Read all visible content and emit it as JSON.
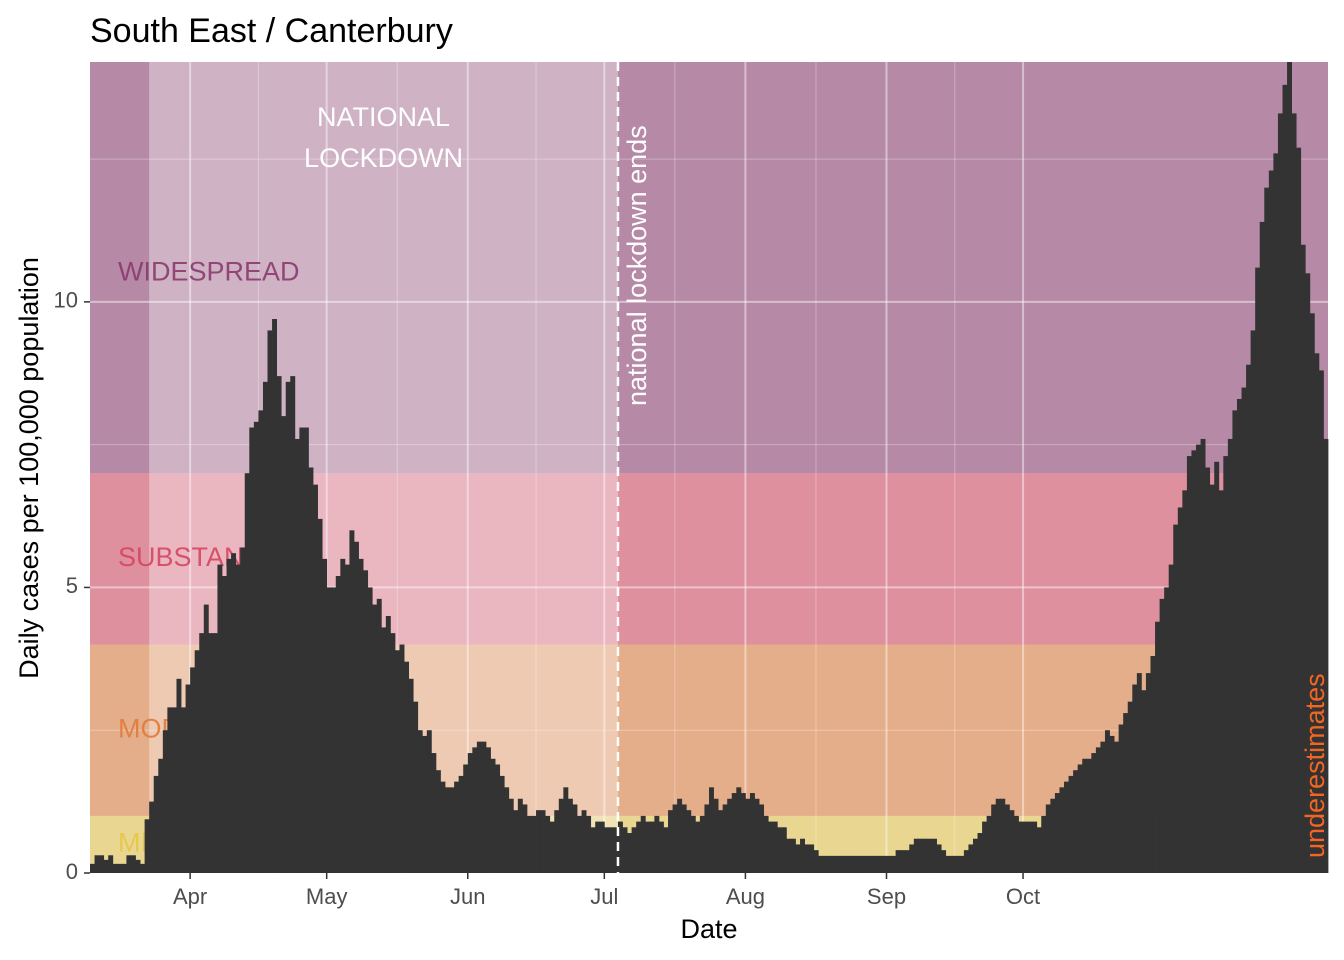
{
  "chart_data": {
    "type": "bar",
    "title": "South East / Canterbury",
    "xlabel": "Date",
    "ylabel": "Daily cases per 100,000 population",
    "x_start": "2020-03-10",
    "ylim": [
      0,
      14.2
    ],
    "yticks": [
      {
        "value": 0,
        "label": "0"
      },
      {
        "value": 5,
        "label": "5"
      },
      {
        "value": 10,
        "label": "10"
      }
    ],
    "xticks": [
      {
        "date": "2020-04-01",
        "label": "Apr"
      },
      {
        "date": "2020-05-01",
        "label": "May"
      },
      {
        "date": "2020-06-01",
        "label": "Jun"
      },
      {
        "date": "2020-07-01",
        "label": "Jul"
      },
      {
        "date": "2020-08-01",
        "label": "Aug"
      },
      {
        "date": "2020-09-01",
        "label": "Sep"
      },
      {
        "date": "2020-10-01",
        "label": "Oct"
      }
    ],
    "grid": true,
    "bar_color": "#333333",
    "bands": [
      {
        "label": "MINIMAL",
        "ymin": 0,
        "ymax": 1,
        "color": "#e8c547"
      },
      {
        "label": "MODERATE",
        "ymin": 1,
        "ymax": 4,
        "color": "#e07b3a"
      },
      {
        "label": "SUBSTANTIAL",
        "ymin": 4,
        "ymax": 7,
        "color": "#d6455f"
      },
      {
        "label": "WIDESPREAD",
        "ymin": 7,
        "ymax": 14.2,
        "color": "#8a3a6e"
      }
    ],
    "lockdown": {
      "start": "2020-03-23",
      "end": "2020-07-04",
      "label_lines": [
        "NATIONAL",
        "LOCKDOWN"
      ],
      "end_label": "national lockdown ends"
    },
    "underestimates_label": "underestimates",
    "underestimates_color": "#f26522",
    "values": [
      0.16,
      0.31,
      0.31,
      0.23,
      0.31,
      0.16,
      0.16,
      0.16,
      0.31,
      0.31,
      0.23,
      0.16,
      0.94,
      1.25,
      1.7,
      2.0,
      2.5,
      2.9,
      2.9,
      3.4,
      2.9,
      3.3,
      3.6,
      3.9,
      4.2,
      4.7,
      4.2,
      4.2,
      5.4,
      5.2,
      5.5,
      5.6,
      5.4,
      5.7,
      7.0,
      7.8,
      7.9,
      8.1,
      8.6,
      9.5,
      9.7,
      8.7,
      8.0,
      8.6,
      8.7,
      7.6,
      7.8,
      7.8,
      7.1,
      6.8,
      6.2,
      5.5,
      5.0,
      5.0,
      5.2,
      5.5,
      5.4,
      6.0,
      5.8,
      5.5,
      5.3,
      5.0,
      4.7,
      4.8,
      4.3,
      4.5,
      4.2,
      3.9,
      4.0,
      3.7,
      3.4,
      3.0,
      2.5,
      2.4,
      2.5,
      2.1,
      1.8,
      1.6,
      1.5,
      1.5,
      1.6,
      1.7,
      1.9,
      2.1,
      2.2,
      2.3,
      2.3,
      2.2,
      2.0,
      1.9,
      1.7,
      1.5,
      1.3,
      1.1,
      1.3,
      1.2,
      1.0,
      1.0,
      1.1,
      1.1,
      1.0,
      0.9,
      1.1,
      1.3,
      1.5,
      1.3,
      1.2,
      1.0,
      1.1,
      1.0,
      0.8,
      0.9,
      0.9,
      0.8,
      0.8,
      0.8,
      0.9,
      0.8,
      0.7,
      0.8,
      0.9,
      1.0,
      0.9,
      0.9,
      1.0,
      0.9,
      0.8,
      1.1,
      1.2,
      1.3,
      1.2,
      1.1,
      1.0,
      0.9,
      1.0,
      1.2,
      1.5,
      1.3,
      1.1,
      1.2,
      1.3,
      1.4,
      1.5,
      1.4,
      1.3,
      1.4,
      1.3,
      1.2,
      1.0,
      0.9,
      0.9,
      0.8,
      0.8,
      0.6,
      0.6,
      0.5,
      0.6,
      0.5,
      0.5,
      0.4,
      0.3,
      0.3,
      0.3,
      0.3,
      0.3,
      0.3,
      0.3,
      0.3,
      0.3,
      0.3,
      0.3,
      0.3,
      0.3,
      0.3,
      0.3,
      0.3,
      0.3,
      0.4,
      0.4,
      0.4,
      0.5,
      0.6,
      0.6,
      0.6,
      0.6,
      0.6,
      0.5,
      0.4,
      0.3,
      0.3,
      0.3,
      0.3,
      0.4,
      0.5,
      0.6,
      0.7,
      0.9,
      1.0,
      1.2,
      1.3,
      1.3,
      1.2,
      1.1,
      1.0,
      0.9,
      0.9,
      0.9,
      0.9,
      0.8,
      1.0,
      1.2,
      1.3,
      1.4,
      1.5,
      1.6,
      1.7,
      1.8,
      1.9,
      2.0,
      2.0,
      2.1,
      2.2,
      2.3,
      2.5,
      2.4,
      2.3,
      2.6,
      2.8,
      3.0,
      3.3,
      3.5,
      3.2,
      3.5,
      3.8,
      4.4,
      4.8,
      5.0,
      5.4,
      6.1,
      6.4,
      6.7,
      7.3,
      7.4,
      7.5,
      7.6,
      7.1,
      6.8,
      7.2,
      6.7,
      7.3,
      7.6,
      8.1,
      8.3,
      8.5,
      8.9,
      9.5,
      10.6,
      11.4,
      12.0,
      12.3,
      12.6,
      13.3,
      13.8,
      14.2,
      13.3,
      12.7,
      11.0,
      10.5,
      9.8,
      9.1,
      8.8,
      7.6
    ]
  }
}
